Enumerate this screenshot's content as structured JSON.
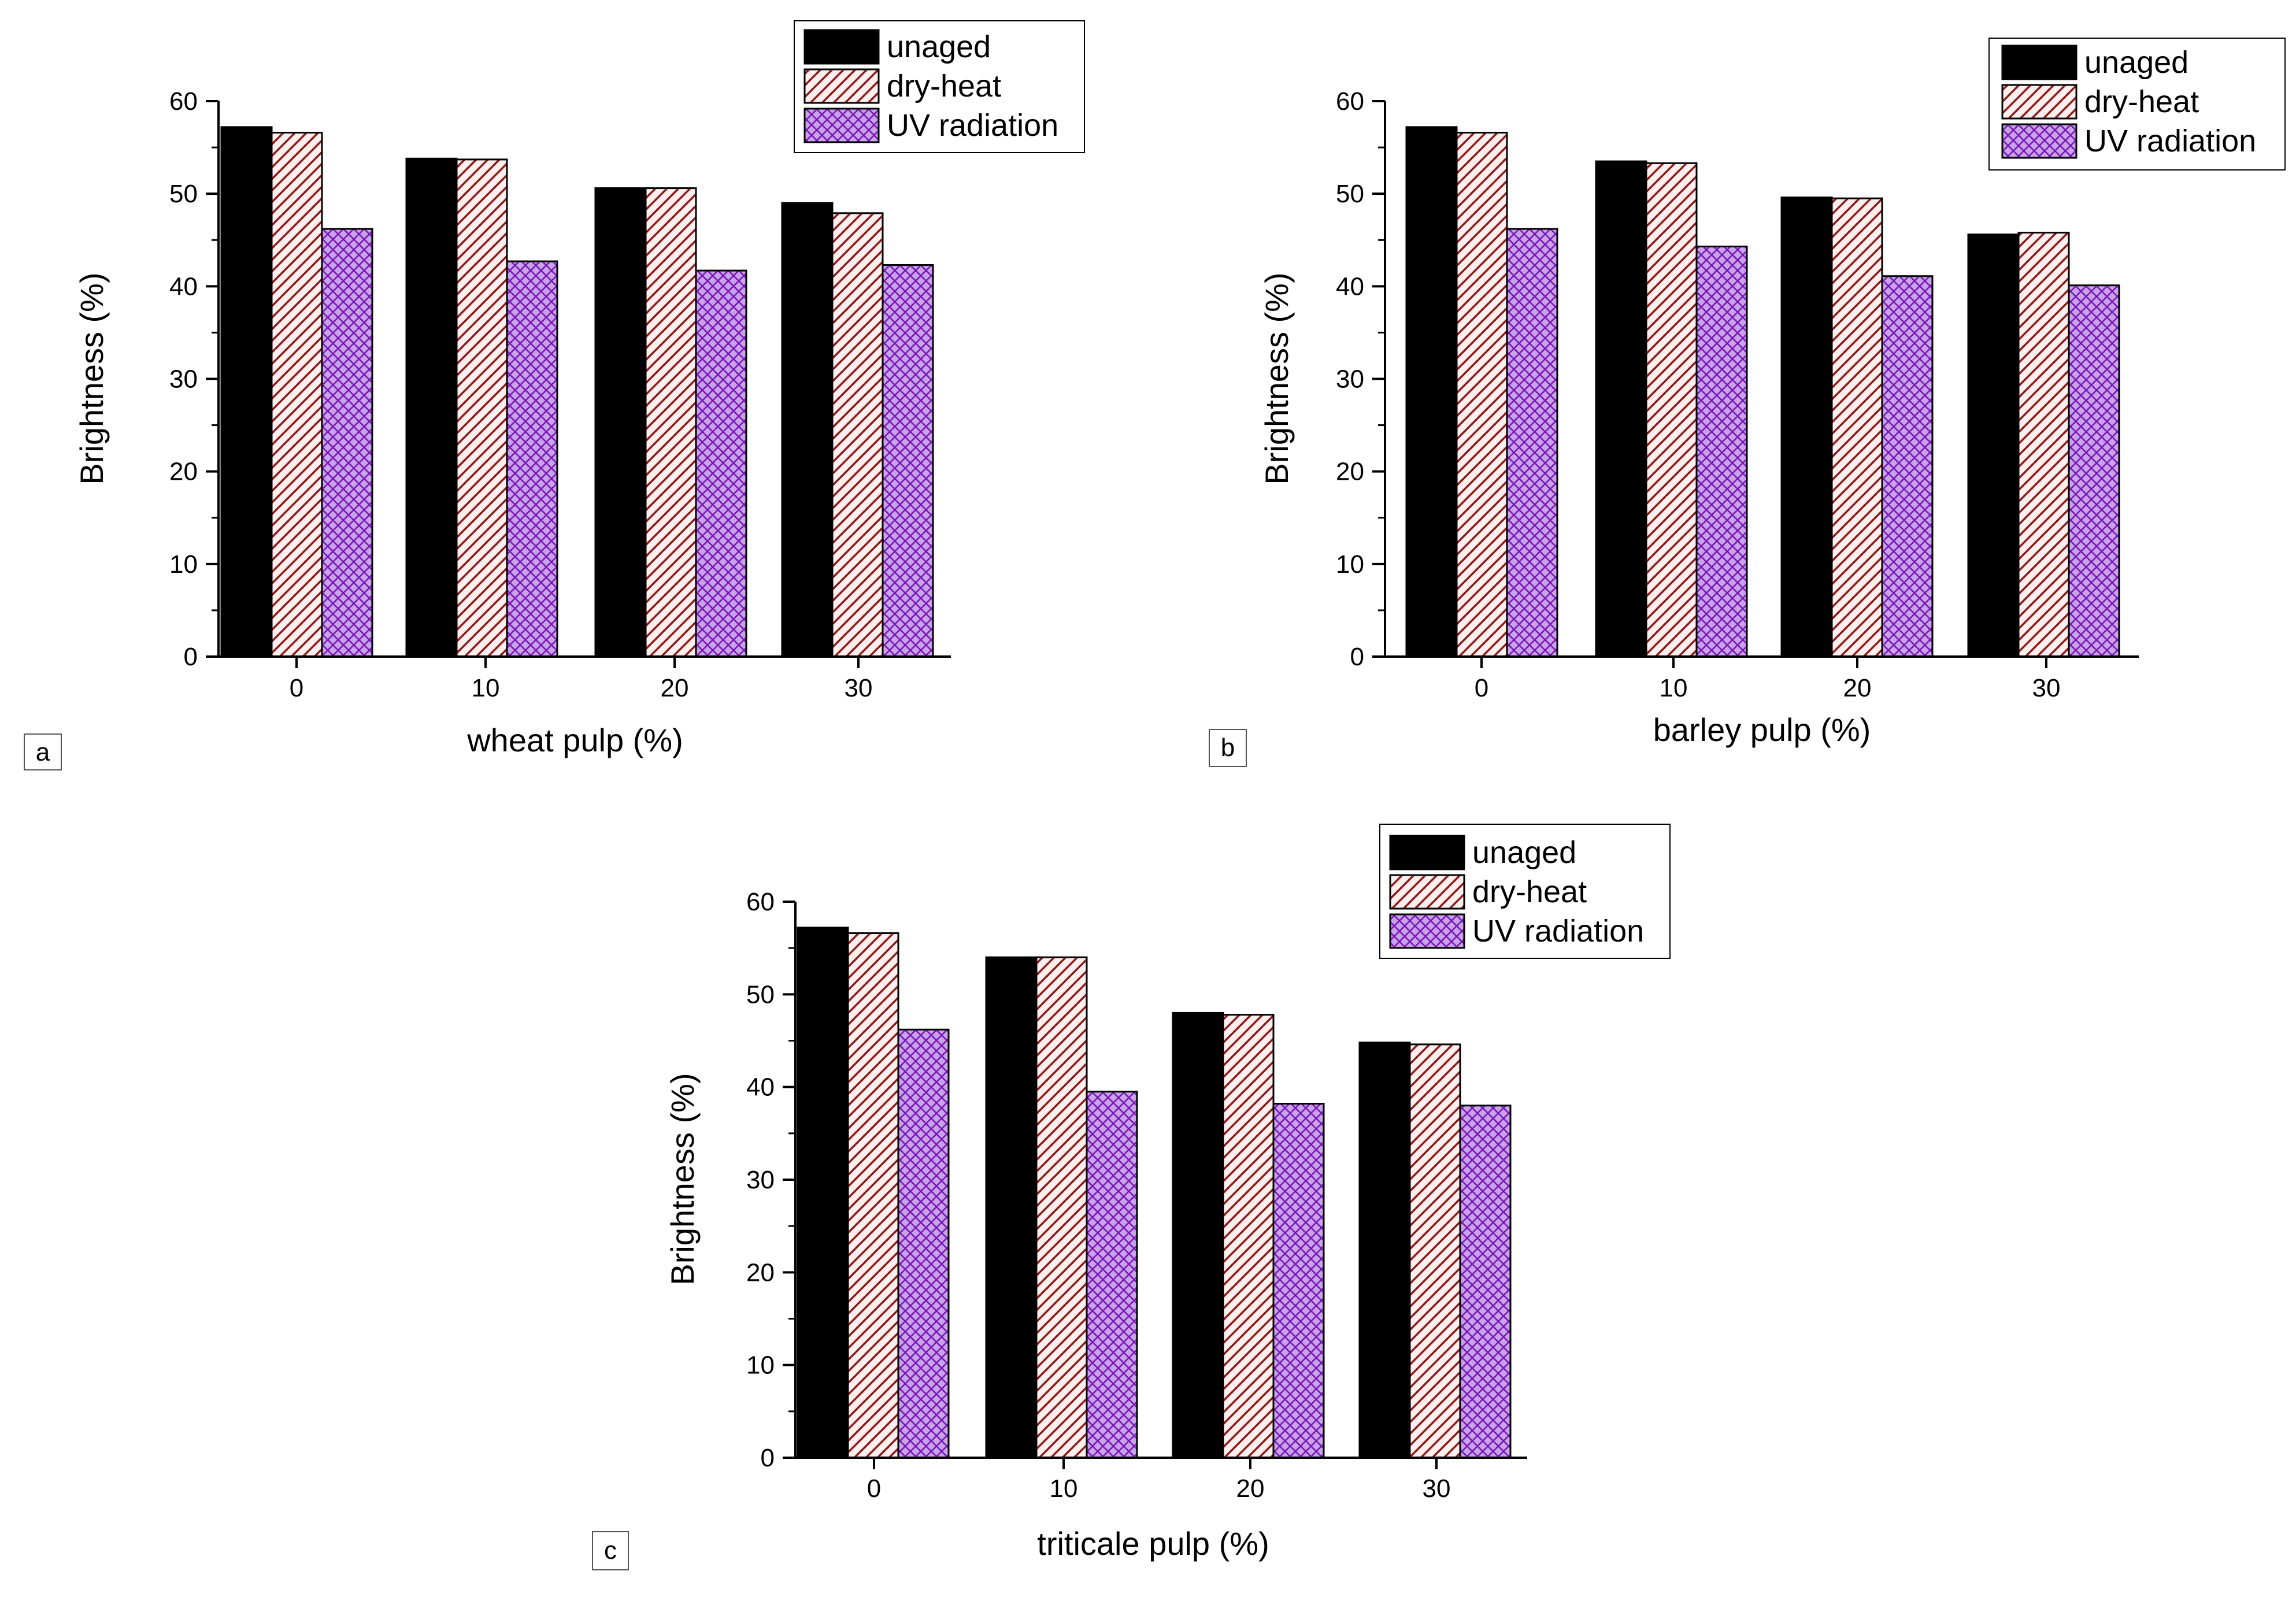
{
  "colors": {
    "unaged": "#000000",
    "dry_heat_fill": "#ffeeee",
    "dry_heat_hatch": "#8b1a1a",
    "uv_fill": "#c9a3ea",
    "uv_hatch": "#7a18b8"
  },
  "legend": {
    "unaged": "unaged",
    "dry_heat": "dry-heat",
    "uv": "UV radiation"
  },
  "chart_data": [
    {
      "type": "bar",
      "panel": "a",
      "xlabel": "wheat pulp (%)",
      "ylabel": "Brightness (%)",
      "ylim": [
        0,
        60
      ],
      "yticks": [
        0,
        10,
        20,
        30,
        40,
        50,
        60
      ],
      "categories": [
        "0",
        "10",
        "20",
        "30"
      ],
      "legend_position": "top-right",
      "series": [
        {
          "name": "unaged",
          "values": [
            57.2,
            53.8,
            50.6,
            49.0
          ]
        },
        {
          "name": "dry-heat",
          "values": [
            56.6,
            53.7,
            50.6,
            47.9
          ]
        },
        {
          "name": "UV radiation",
          "values": [
            46.2,
            42.7,
            41.7,
            42.3
          ]
        }
      ]
    },
    {
      "type": "bar",
      "panel": "b",
      "xlabel": "barley pulp (%)",
      "ylabel": "Brightness (%)",
      "ylim": [
        0,
        60
      ],
      "yticks": [
        0,
        10,
        20,
        30,
        40,
        50,
        60
      ],
      "categories": [
        "0",
        "10",
        "20",
        "30"
      ],
      "legend_position": "top-right",
      "series": [
        {
          "name": "unaged",
          "values": [
            57.2,
            53.5,
            49.6,
            45.6
          ]
        },
        {
          "name": "dry-heat",
          "values": [
            56.6,
            53.3,
            49.5,
            45.8
          ]
        },
        {
          "name": "UV radiation",
          "values": [
            46.2,
            44.3,
            41.1,
            40.1
          ]
        }
      ]
    },
    {
      "type": "bar",
      "panel": "c",
      "xlabel": "triticale pulp (%)",
      "ylabel": "Brightness (%)",
      "ylim": [
        0,
        60
      ],
      "yticks": [
        0,
        10,
        20,
        30,
        40,
        50,
        60
      ],
      "categories": [
        "0",
        "10",
        "20",
        "30"
      ],
      "legend_position": "top-right",
      "series": [
        {
          "name": "unaged",
          "values": [
            57.2,
            54.0,
            48.0,
            44.8
          ]
        },
        {
          "name": "dry-heat",
          "values": [
            56.6,
            54.0,
            47.8,
            44.6
          ]
        },
        {
          "name": "UV radiation",
          "values": [
            46.2,
            39.5,
            38.2,
            38.0
          ]
        }
      ]
    }
  ]
}
